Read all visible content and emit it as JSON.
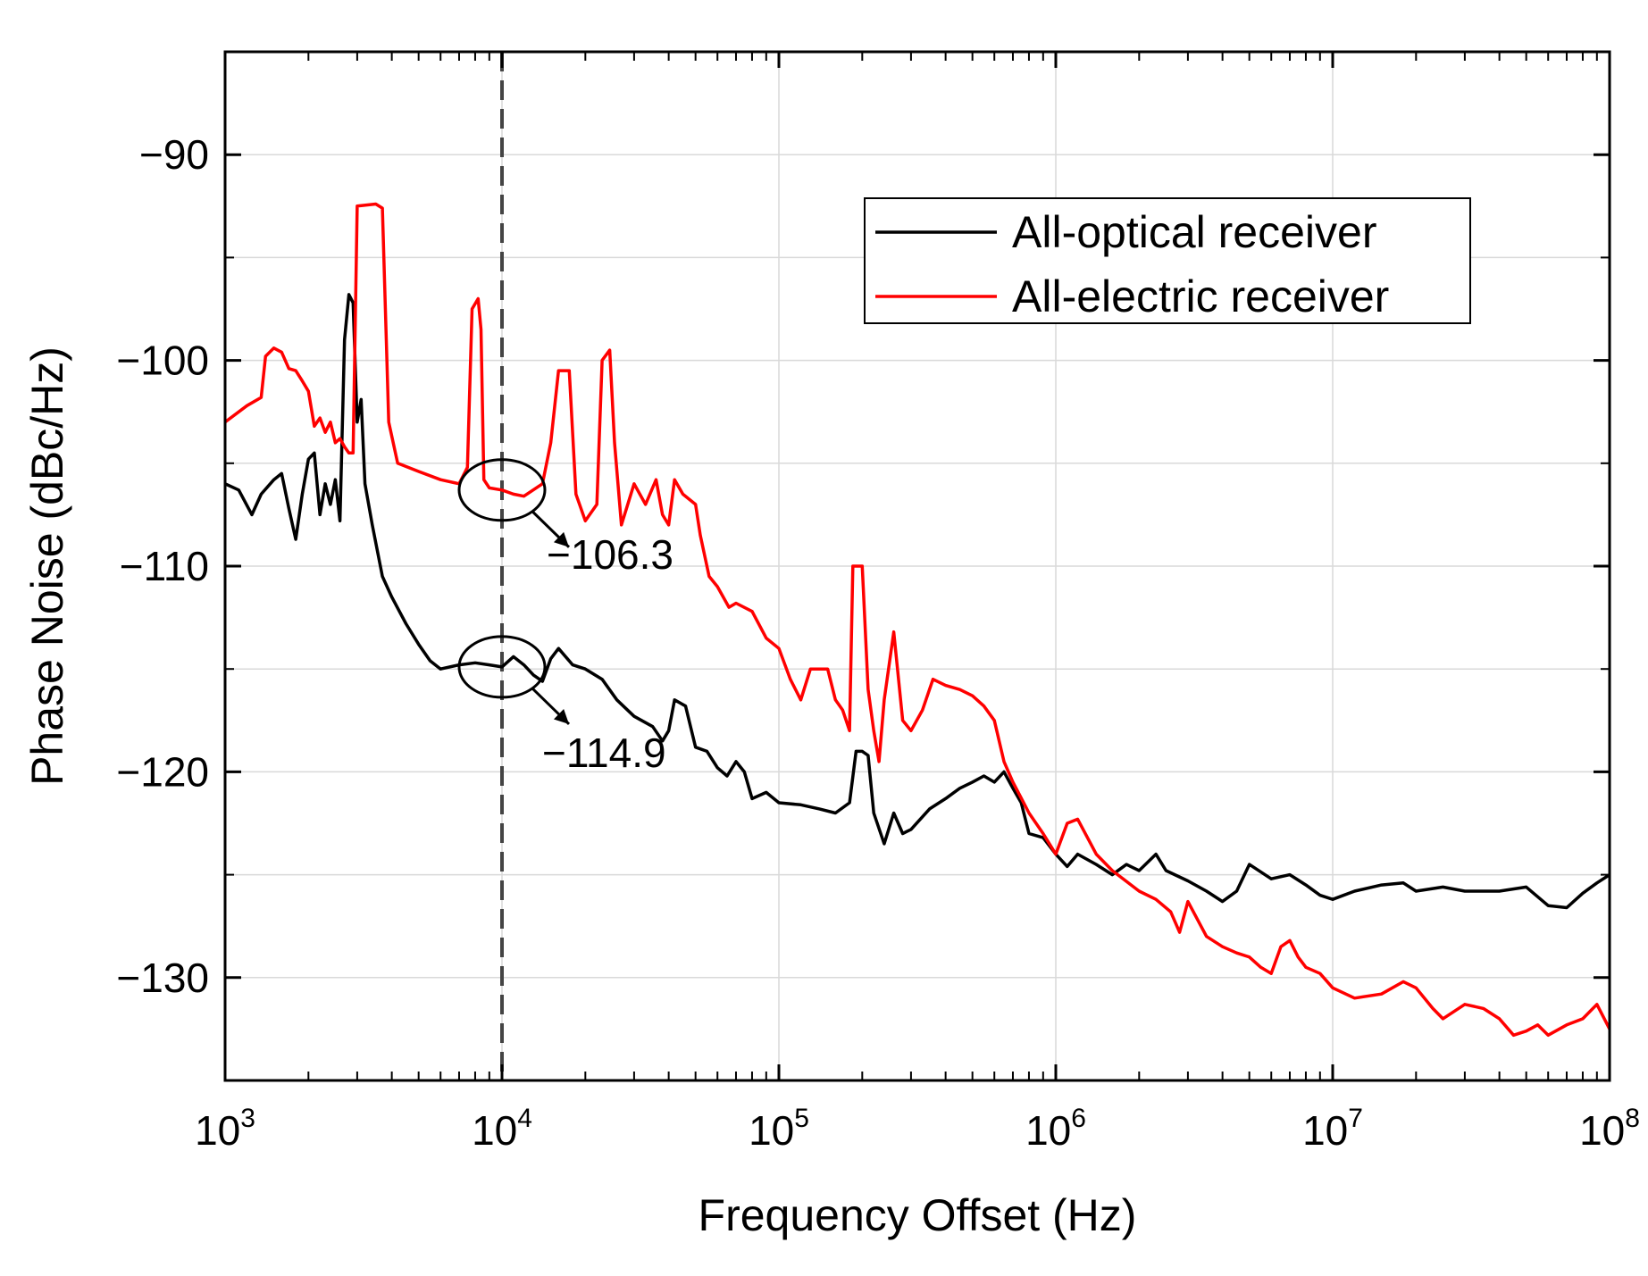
{
  "chart_data": {
    "type": "line",
    "title": "",
    "xlabel": "Frequency Offset (Hz)",
    "ylabel": "Phase Noise (dBc/Hz)",
    "x_scale": "log",
    "xlim": [
      1000,
      100000000
    ],
    "ylim": [
      -135,
      -85
    ],
    "x_ticks": [
      {
        "value": 1000,
        "base": "10",
        "exp": "3"
      },
      {
        "value": 10000,
        "base": "10",
        "exp": "4"
      },
      {
        "value": 100000,
        "base": "10",
        "exp": "5"
      },
      {
        "value": 1000000,
        "base": "10",
        "exp": "6"
      },
      {
        "value": 10000000,
        "base": "10",
        "exp": "7"
      },
      {
        "value": 100000000,
        "base": "10",
        "exp": "8"
      }
    ],
    "y_ticks": [
      {
        "value": -90,
        "label": "−90"
      },
      {
        "value": -100,
        "label": "−100"
      },
      {
        "value": -110,
        "label": "−110"
      },
      {
        "value": -120,
        "label": "−120"
      },
      {
        "value": -130,
        "label": "−130"
      }
    ],
    "grid": true,
    "legend_position": "top-right",
    "reference_line": {
      "x": 10000,
      "style": "dashed"
    },
    "annotations": [
      {
        "text": "−106.3",
        "x": 10000,
        "y": -106.3
      },
      {
        "text": "−114.9",
        "x": 10000,
        "y": -114.9
      }
    ],
    "series": [
      {
        "name": "All-optical receiver",
        "color": "#000000",
        "points": [
          [
            1000,
            -106
          ],
          [
            1120,
            -106.3
          ],
          [
            1250,
            -107.5
          ],
          [
            1350,
            -106.5
          ],
          [
            1500,
            -105.8
          ],
          [
            1600,
            -105.5
          ],
          [
            1700,
            -107.2
          ],
          [
            1800,
            -108.7
          ],
          [
            1900,
            -106.5
          ],
          [
            2000,
            -104.8
          ],
          [
            2100,
            -104.5
          ],
          [
            2200,
            -107.5
          ],
          [
            2300,
            -106.0
          ],
          [
            2400,
            -107.0
          ],
          [
            2500,
            -105.8
          ],
          [
            2600,
            -107.8
          ],
          [
            2700,
            -99.0
          ],
          [
            2800,
            -96.8
          ],
          [
            2900,
            -97.2
          ],
          [
            3000,
            -103.0
          ],
          [
            3100,
            -101.9
          ],
          [
            3200,
            -106.0
          ],
          [
            3400,
            -108.0
          ],
          [
            3700,
            -110.5
          ],
          [
            4000,
            -111.5
          ],
          [
            4500,
            -112.8
          ],
          [
            5000,
            -113.8
          ],
          [
            5500,
            -114.6
          ],
          [
            6000,
            -115.0
          ],
          [
            7000,
            -114.8
          ],
          [
            8000,
            -114.7
          ],
          [
            9000,
            -114.8
          ],
          [
            10000,
            -114.9
          ],
          [
            11000,
            -114.4
          ],
          [
            12000,
            -114.8
          ],
          [
            13000,
            -115.3
          ],
          [
            14000,
            -115.6
          ],
          [
            15000,
            -114.5
          ],
          [
            16000,
            -114.0
          ],
          [
            18000,
            -114.8
          ],
          [
            20000,
            -115.0
          ],
          [
            23000,
            -115.5
          ],
          [
            26000,
            -116.5
          ],
          [
            30000,
            -117.3
          ],
          [
            35000,
            -117.8
          ],
          [
            38000,
            -118.5
          ],
          [
            40000,
            -118.0
          ],
          [
            42000,
            -116.5
          ],
          [
            46000,
            -116.8
          ],
          [
            50000,
            -118.8
          ],
          [
            55000,
            -119.0
          ],
          [
            60000,
            -119.8
          ],
          [
            65000,
            -120.2
          ],
          [
            70000,
            -119.5
          ],
          [
            75000,
            -120.0
          ],
          [
            80000,
            -121.3
          ],
          [
            90000,
            -121.0
          ],
          [
            100000,
            -121.5
          ],
          [
            120000,
            -121.6
          ],
          [
            140000,
            -121.8
          ],
          [
            160000,
            -122.0
          ],
          [
            180000,
            -121.5
          ],
          [
            190000,
            -119.0
          ],
          [
            200000,
            -119.0
          ],
          [
            210000,
            -119.2
          ],
          [
            220000,
            -122.0
          ],
          [
            240000,
            -123.5
          ],
          [
            260000,
            -122.0
          ],
          [
            280000,
            -123.0
          ],
          [
            300000,
            -122.8
          ],
          [
            350000,
            -121.8
          ],
          [
            400000,
            -121.3
          ],
          [
            450000,
            -120.8
          ],
          [
            500000,
            -120.5
          ],
          [
            550000,
            -120.2
          ],
          [
            600000,
            -120.5
          ],
          [
            650000,
            -120.0
          ],
          [
            700000,
            -120.8
          ],
          [
            750000,
            -121.5
          ],
          [
            800000,
            -123.0
          ],
          [
            900000,
            -123.2
          ],
          [
            1000000,
            -124.0
          ],
          [
            1100000,
            -124.6
          ],
          [
            1200000,
            -124.0
          ],
          [
            1400000,
            -124.5
          ],
          [
            1600000,
            -125.0
          ],
          [
            1800000,
            -124.5
          ],
          [
            2000000,
            -124.8
          ],
          [
            2300000,
            -124.0
          ],
          [
            2500000,
            -124.8
          ],
          [
            3000000,
            -125.3
          ],
          [
            3500000,
            -125.8
          ],
          [
            4000000,
            -126.3
          ],
          [
            4500000,
            -125.8
          ],
          [
            5000000,
            -124.5
          ],
          [
            6000000,
            -125.2
          ],
          [
            7000000,
            -125.0
          ],
          [
            8000000,
            -125.5
          ],
          [
            9000000,
            -126.0
          ],
          [
            10000000,
            -126.2
          ],
          [
            12000000,
            -125.8
          ],
          [
            15000000,
            -125.5
          ],
          [
            18000000,
            -125.4
          ],
          [
            20000000,
            -125.8
          ],
          [
            25000000,
            -125.6
          ],
          [
            30000000,
            -125.8
          ],
          [
            40000000,
            -125.8
          ],
          [
            50000000,
            -125.6
          ],
          [
            60000000,
            -126.5
          ],
          [
            70000000,
            -126.6
          ],
          [
            80000000,
            -125.9
          ],
          [
            90000000,
            -125.4
          ],
          [
            100000000,
            -125.0
          ]
        ]
      },
      {
        "name": "All-electric receiver",
        "color": "#ff0000",
        "points": [
          [
            1000,
            -103.0
          ],
          [
            1200,
            -102.2
          ],
          [
            1350,
            -101.8
          ],
          [
            1400,
            -99.8
          ],
          [
            1500,
            -99.4
          ],
          [
            1600,
            -99.6
          ],
          [
            1700,
            -100.4
          ],
          [
            1800,
            -100.5
          ],
          [
            1900,
            -101.0
          ],
          [
            2000,
            -101.5
          ],
          [
            2100,
            -103.2
          ],
          [
            2200,
            -102.8
          ],
          [
            2300,
            -103.5
          ],
          [
            2400,
            -103.0
          ],
          [
            2500,
            -104.0
          ],
          [
            2600,
            -103.8
          ],
          [
            2700,
            -104.2
          ],
          [
            2800,
            -104.5
          ],
          [
            2900,
            -104.5
          ],
          [
            3000,
            -92.5
          ],
          [
            3500,
            -92.4
          ],
          [
            3700,
            -92.6
          ],
          [
            3900,
            -103.0
          ],
          [
            4200,
            -105.0
          ],
          [
            5000,
            -105.4
          ],
          [
            6000,
            -105.8
          ],
          [
            7000,
            -106.0
          ],
          [
            7500,
            -105.2
          ],
          [
            7800,
            -97.5
          ],
          [
            8200,
            -97.0
          ],
          [
            8400,
            -98.5
          ],
          [
            8600,
            -105.8
          ],
          [
            9000,
            -106.2
          ],
          [
            10000,
            -106.3
          ],
          [
            11000,
            -106.5
          ],
          [
            12000,
            -106.6
          ],
          [
            14000,
            -106.0
          ],
          [
            15000,
            -104.0
          ],
          [
            16000,
            -100.5
          ],
          [
            17500,
            -100.5
          ],
          [
            18500,
            -106.5
          ],
          [
            20000,
            -107.8
          ],
          [
            22000,
            -107.0
          ],
          [
            23000,
            -100.0
          ],
          [
            24500,
            -99.5
          ],
          [
            25500,
            -104.0
          ],
          [
            27000,
            -108.0
          ],
          [
            30000,
            -106.0
          ],
          [
            33000,
            -107.0
          ],
          [
            36000,
            -105.8
          ],
          [
            38000,
            -107.5
          ],
          [
            40000,
            -108.0
          ],
          [
            42000,
            -105.8
          ],
          [
            45000,
            -106.5
          ],
          [
            50000,
            -107.0
          ],
          [
            52000,
            -108.5
          ],
          [
            56000,
            -110.5
          ],
          [
            60000,
            -111.0
          ],
          [
            66000,
            -112.0
          ],
          [
            70000,
            -111.8
          ],
          [
            80000,
            -112.2
          ],
          [
            90000,
            -113.5
          ],
          [
            100000,
            -114.0
          ],
          [
            110000,
            -115.5
          ],
          [
            120000,
            -116.5
          ],
          [
            130000,
            -115.0
          ],
          [
            150000,
            -115.0
          ],
          [
            160000,
            -116.5
          ],
          [
            170000,
            -117.0
          ],
          [
            180000,
            -118.0
          ],
          [
            185000,
            -110.0
          ],
          [
            200000,
            -110.0
          ],
          [
            210000,
            -116.0
          ],
          [
            220000,
            -118.0
          ],
          [
            230000,
            -119.5
          ],
          [
            240000,
            -116.5
          ],
          [
            260000,
            -113.2
          ],
          [
            280000,
            -117.5
          ],
          [
            300000,
            -118.0
          ],
          [
            330000,
            -117.0
          ],
          [
            360000,
            -115.5
          ],
          [
            400000,
            -115.8
          ],
          [
            450000,
            -116.0
          ],
          [
            500000,
            -116.3
          ],
          [
            550000,
            -116.8
          ],
          [
            600000,
            -117.5
          ],
          [
            650000,
            -119.5
          ],
          [
            700000,
            -120.5
          ],
          [
            800000,
            -122.0
          ],
          [
            900000,
            -123.0
          ],
          [
            1000000,
            -124.0
          ],
          [
            1100000,
            -122.5
          ],
          [
            1200000,
            -122.3
          ],
          [
            1400000,
            -124.0
          ],
          [
            1600000,
            -124.8
          ],
          [
            2000000,
            -125.8
          ],
          [
            2300000,
            -126.2
          ],
          [
            2600000,
            -126.8
          ],
          [
            2800000,
            -127.8
          ],
          [
            3000000,
            -126.3
          ],
          [
            3500000,
            -128.0
          ],
          [
            4000000,
            -128.5
          ],
          [
            4500000,
            -128.8
          ],
          [
            5000000,
            -129.0
          ],
          [
            5500000,
            -129.5
          ],
          [
            6000000,
            -129.8
          ],
          [
            6500000,
            -128.5
          ],
          [
            7000000,
            -128.2
          ],
          [
            7500000,
            -129.0
          ],
          [
            8000000,
            -129.5
          ],
          [
            9000000,
            -129.8
          ],
          [
            10000000,
            -130.5
          ],
          [
            12000000,
            -131.0
          ],
          [
            15000000,
            -130.8
          ],
          [
            18000000,
            -130.2
          ],
          [
            20000000,
            -130.5
          ],
          [
            23000000,
            -131.5
          ],
          [
            25000000,
            -132.0
          ],
          [
            30000000,
            -131.3
          ],
          [
            35000000,
            -131.5
          ],
          [
            40000000,
            -132.0
          ],
          [
            45000000,
            -132.8
          ],
          [
            50000000,
            -132.6
          ],
          [
            55000000,
            -132.3
          ],
          [
            60000000,
            -132.8
          ],
          [
            70000000,
            -132.3
          ],
          [
            80000000,
            -132.0
          ],
          [
            90000000,
            -131.3
          ],
          [
            100000000,
            -132.5
          ]
        ]
      }
    ]
  }
}
